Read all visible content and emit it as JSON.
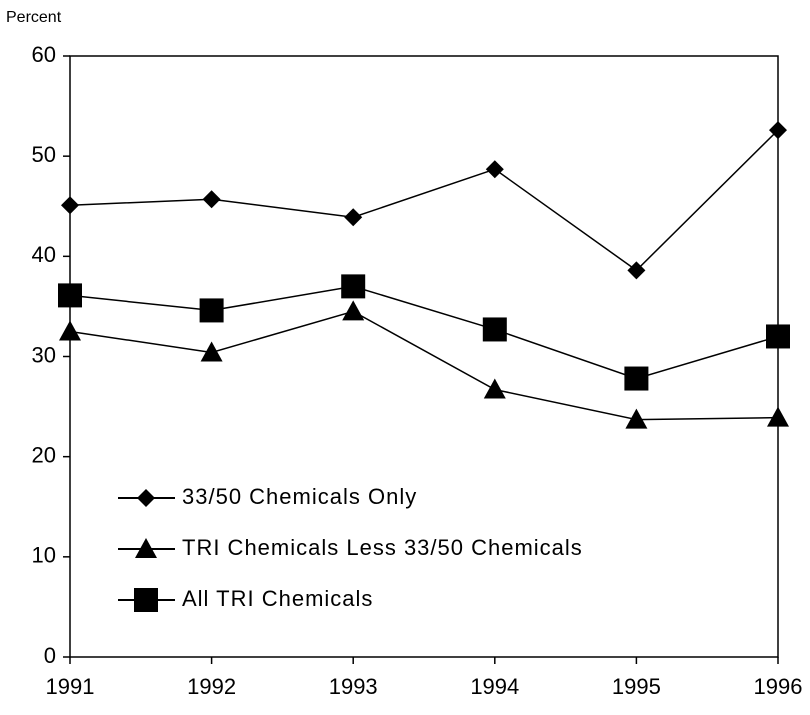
{
  "chart_data": {
    "type": "line",
    "y_label": "Percent",
    "x": [
      1991,
      1992,
      1993,
      1994,
      1995,
      1996
    ],
    "xlim": [
      1991,
      1996
    ],
    "xticks": [
      1991,
      1992,
      1993,
      1994,
      1995,
      1996
    ],
    "ylim": [
      0,
      60
    ],
    "yticks": [
      0,
      10,
      20,
      30,
      40,
      50,
      60
    ],
    "grid": false,
    "legend": "lower-left",
    "series": [
      {
        "name": "33/50 Chemicals Only",
        "color": "#000000",
        "marker": "diamond",
        "values": [
          45.1,
          45.7,
          43.9,
          48.7,
          38.6,
          52.6
        ]
      },
      {
        "name": "TRI Chemicals Less 33/50 Chemicals",
        "color": "#000000",
        "marker": "triangle",
        "values": [
          32.5,
          30.4,
          34.5,
          26.7,
          23.7,
          23.9
        ]
      },
      {
        "name": "All TRI Chemicals",
        "color": "#000000",
        "marker": "square",
        "values": [
          36.1,
          34.6,
          37.0,
          32.7,
          27.8,
          32.0
        ]
      }
    ]
  }
}
